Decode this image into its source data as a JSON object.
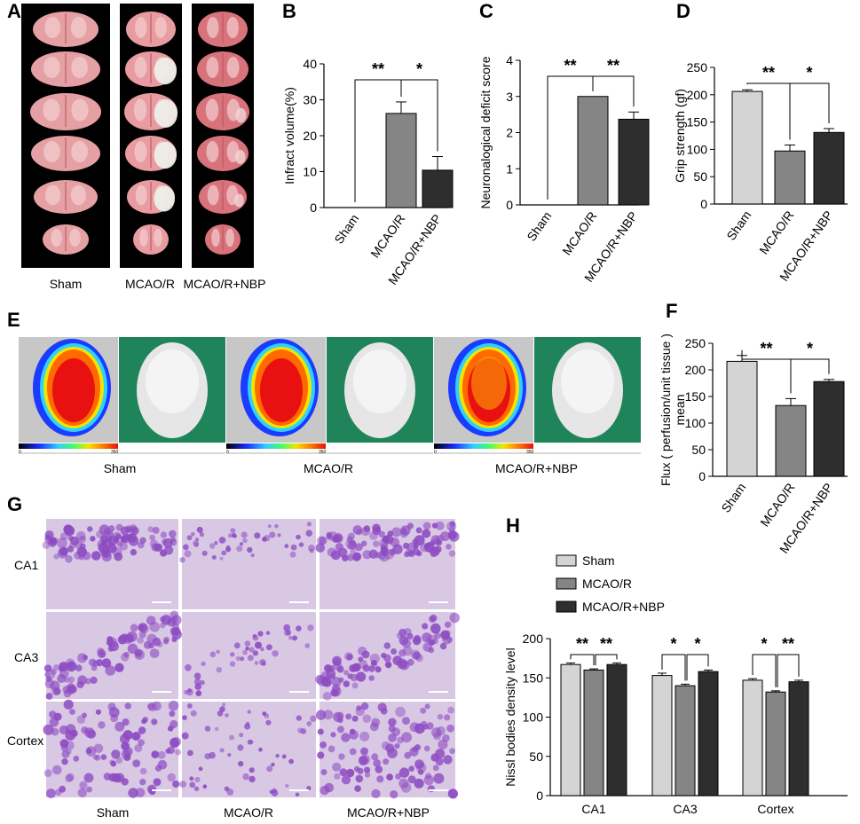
{
  "panels": {
    "A": {
      "letter": "A",
      "group_labels": [
        "Sham",
        "MCAO/R",
        "MCAO/R+NBP"
      ]
    },
    "E": {
      "letter": "E",
      "group_labels": [
        "Sham",
        "MCAO/R",
        "MCAO/R+NBP"
      ],
      "scale_min": "0",
      "scale_max": "350"
    },
    "G": {
      "letter": "G",
      "row_labels": [
        "CA1",
        "CA3",
        "Cortex"
      ],
      "group_labels": [
        "Sham",
        "MCAO/R",
        "MCAO/R+NBP"
      ]
    }
  },
  "colors": {
    "sham": "#d4d4d4",
    "mcao": "#858585",
    "nbp": "#2e2e2e",
    "ttc_healthy": "#e7a6a8",
    "ttc_infarct": "#eef0ea",
    "laser_bg": "#c7c7c7",
    "photo_bg": "#20845a",
    "nissl_bg": "#d9c8e4",
    "nissl_cell": "#8d4cc2"
  },
  "chart_data": [
    {
      "id": "B",
      "letter": "B",
      "type": "bar",
      "categories": [
        "Sham",
        "MCAO/R",
        "MCAO/R+NBP"
      ],
      "values": [
        0,
        26.2,
        10.4
      ],
      "errors": [
        0,
        3.2,
        3.8
      ],
      "ylabel": "Infract volume(%)",
      "ylim": [
        0,
        40
      ],
      "yticks": [
        0,
        10,
        20,
        30,
        40
      ],
      "significance": [
        {
          "from": 0,
          "to": 1,
          "label": "**"
        },
        {
          "from": 1,
          "to": 2,
          "label": "*"
        }
      ]
    },
    {
      "id": "C",
      "letter": "C",
      "type": "bar",
      "categories": [
        "Sham",
        "MCAO/R",
        "MCAO/R+NBP"
      ],
      "values": [
        0,
        3.0,
        2.37
      ],
      "errors": [
        0,
        0,
        0.2
      ],
      "ylabel": "Neuronalogical deficit score",
      "ylim": [
        0,
        4
      ],
      "yticks": [
        0,
        1,
        2,
        3,
        4
      ],
      "significance": [
        {
          "from": 0,
          "to": 1,
          "label": "**"
        },
        {
          "from": 1,
          "to": 2,
          "label": "**"
        }
      ]
    },
    {
      "id": "D",
      "letter": "D",
      "type": "bar",
      "categories": [
        "Sham",
        "MCAO/R",
        "MCAO/R+NBP"
      ],
      "values": [
        206,
        97,
        131
      ],
      "errors": [
        3,
        11,
        7
      ],
      "ylabel": "Grip  strength (gf)",
      "ylim": [
        0,
        250
      ],
      "yticks": [
        0,
        50,
        100,
        150,
        200,
        250
      ],
      "significance": [
        {
          "from": 0,
          "to": 1,
          "label": "**"
        },
        {
          "from": 1,
          "to": 2,
          "label": "*"
        }
      ]
    },
    {
      "id": "F",
      "letter": "F",
      "type": "bar",
      "categories": [
        "Sham",
        "MCAO/R",
        "MCAO/R+NBP"
      ],
      "values": [
        216,
        133,
        178
      ],
      "errors": [
        11,
        13,
        4
      ],
      "ylabel": "Flux ( perfusion/unit tissue )",
      "ylabel2": "mean",
      "ylim": [
        0,
        250
      ],
      "yticks": [
        0,
        50,
        100,
        150,
        200,
        250
      ],
      "significance": [
        {
          "from": 0,
          "to": 1,
          "label": "**"
        },
        {
          "from": 1,
          "to": 2,
          "label": "*"
        }
      ]
    },
    {
      "id": "H",
      "letter": "H",
      "type": "bar",
      "categories": [
        "CA1",
        "CA3",
        "Cortex"
      ],
      "series": [
        {
          "name": "Sham",
          "values": [
            167,
            153,
            147
          ],
          "errors": [
            2,
            3,
            2
          ]
        },
        {
          "name": "MCAO/R",
          "values": [
            160,
            140,
            132
          ],
          "errors": [
            1.5,
            2,
            1.5
          ]
        },
        {
          "name": "MCAO/R+NBP",
          "values": [
            167,
            158,
            145
          ],
          "errors": [
            2,
            2,
            2
          ]
        }
      ],
      "ylabel": "Nissl bodies density level",
      "ylim": [
        0,
        200
      ],
      "yticks": [
        0,
        50,
        100,
        150,
        200
      ],
      "legend": "top-left",
      "significance": [
        {
          "group": 0,
          "labels": [
            "**",
            "**"
          ]
        },
        {
          "group": 1,
          "labels": [
            "*",
            "*"
          ]
        },
        {
          "group": 2,
          "labels": [
            "*",
            "**"
          ]
        }
      ]
    }
  ]
}
